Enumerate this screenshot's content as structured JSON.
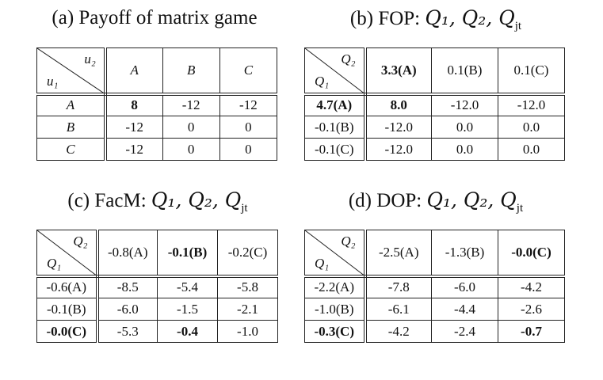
{
  "panels": {
    "a": {
      "title": "(a) Payoff of matrix game",
      "corner_top": "u₂",
      "corner_bottom": "u₁",
      "col_headers": [
        "A",
        "B",
        "C"
      ],
      "rows": [
        {
          "label": "A",
          "cells": [
            "8",
            "-12",
            "-12"
          ]
        },
        {
          "label": "B",
          "cells": [
            "-12",
            "0",
            "0"
          ]
        },
        {
          "label": "C",
          "cells": [
            "-12",
            "0",
            "0"
          ]
        }
      ]
    },
    "b": {
      "title_prefix": "(b) FOP:",
      "title_math": "Q₁, Q₂, Q",
      "title_sub": "jt",
      "corner_top": "Q₂",
      "corner_bottom": "Q₁",
      "col_headers": [
        "3.3(A)",
        "0.1(B)",
        "0.1(C)"
      ],
      "rows": [
        {
          "label": "4.7(A)",
          "cells": [
            "8.0",
            "-12.0",
            "-12.0"
          ]
        },
        {
          "label": "-0.1(B)",
          "cells": [
            "-12.0",
            "0.0",
            "0.0"
          ]
        },
        {
          "label": "-0.1(C)",
          "cells": [
            "-12.0",
            "0.0",
            "0.0"
          ]
        }
      ]
    },
    "c": {
      "title_prefix": "(c) FacM:",
      "title_math": "Q₁, Q₂, Q",
      "title_sub": "jt",
      "corner_top": "Q₂",
      "corner_bottom": "Q₁",
      "col_headers": [
        "-0.8(A)",
        "-0.1(B)",
        "-0.2(C)"
      ],
      "rows": [
        {
          "label": "-0.6(A)",
          "cells": [
            "-8.5",
            "-5.4",
            "-5.8"
          ]
        },
        {
          "label": "-0.1(B)",
          "cells": [
            "-6.0",
            "-1.5",
            "-2.1"
          ]
        },
        {
          "label": "-0.0(C)",
          "cells": [
            "-5.3",
            "-0.4",
            "-1.0"
          ]
        }
      ]
    },
    "d": {
      "title_prefix": "(d) DOP:",
      "title_math": "Q₁, Q₂, Q",
      "title_sub": "jt",
      "corner_top": "Q₂",
      "corner_bottom": "Q₁",
      "col_headers": [
        "-2.5(A)",
        "-1.3(B)",
        "-0.0(C)"
      ],
      "rows": [
        {
          "label": "-2.2(A)",
          "cells": [
            "-7.8",
            "-6.0",
            "-4.2"
          ]
        },
        {
          "label": "-1.0(B)",
          "cells": [
            "-6.1",
            "-4.4",
            "-2.6"
          ]
        },
        {
          "label": "-0.3(C)",
          "cells": [
            "-4.2",
            "-2.4",
            "-0.7"
          ]
        }
      ]
    }
  }
}
